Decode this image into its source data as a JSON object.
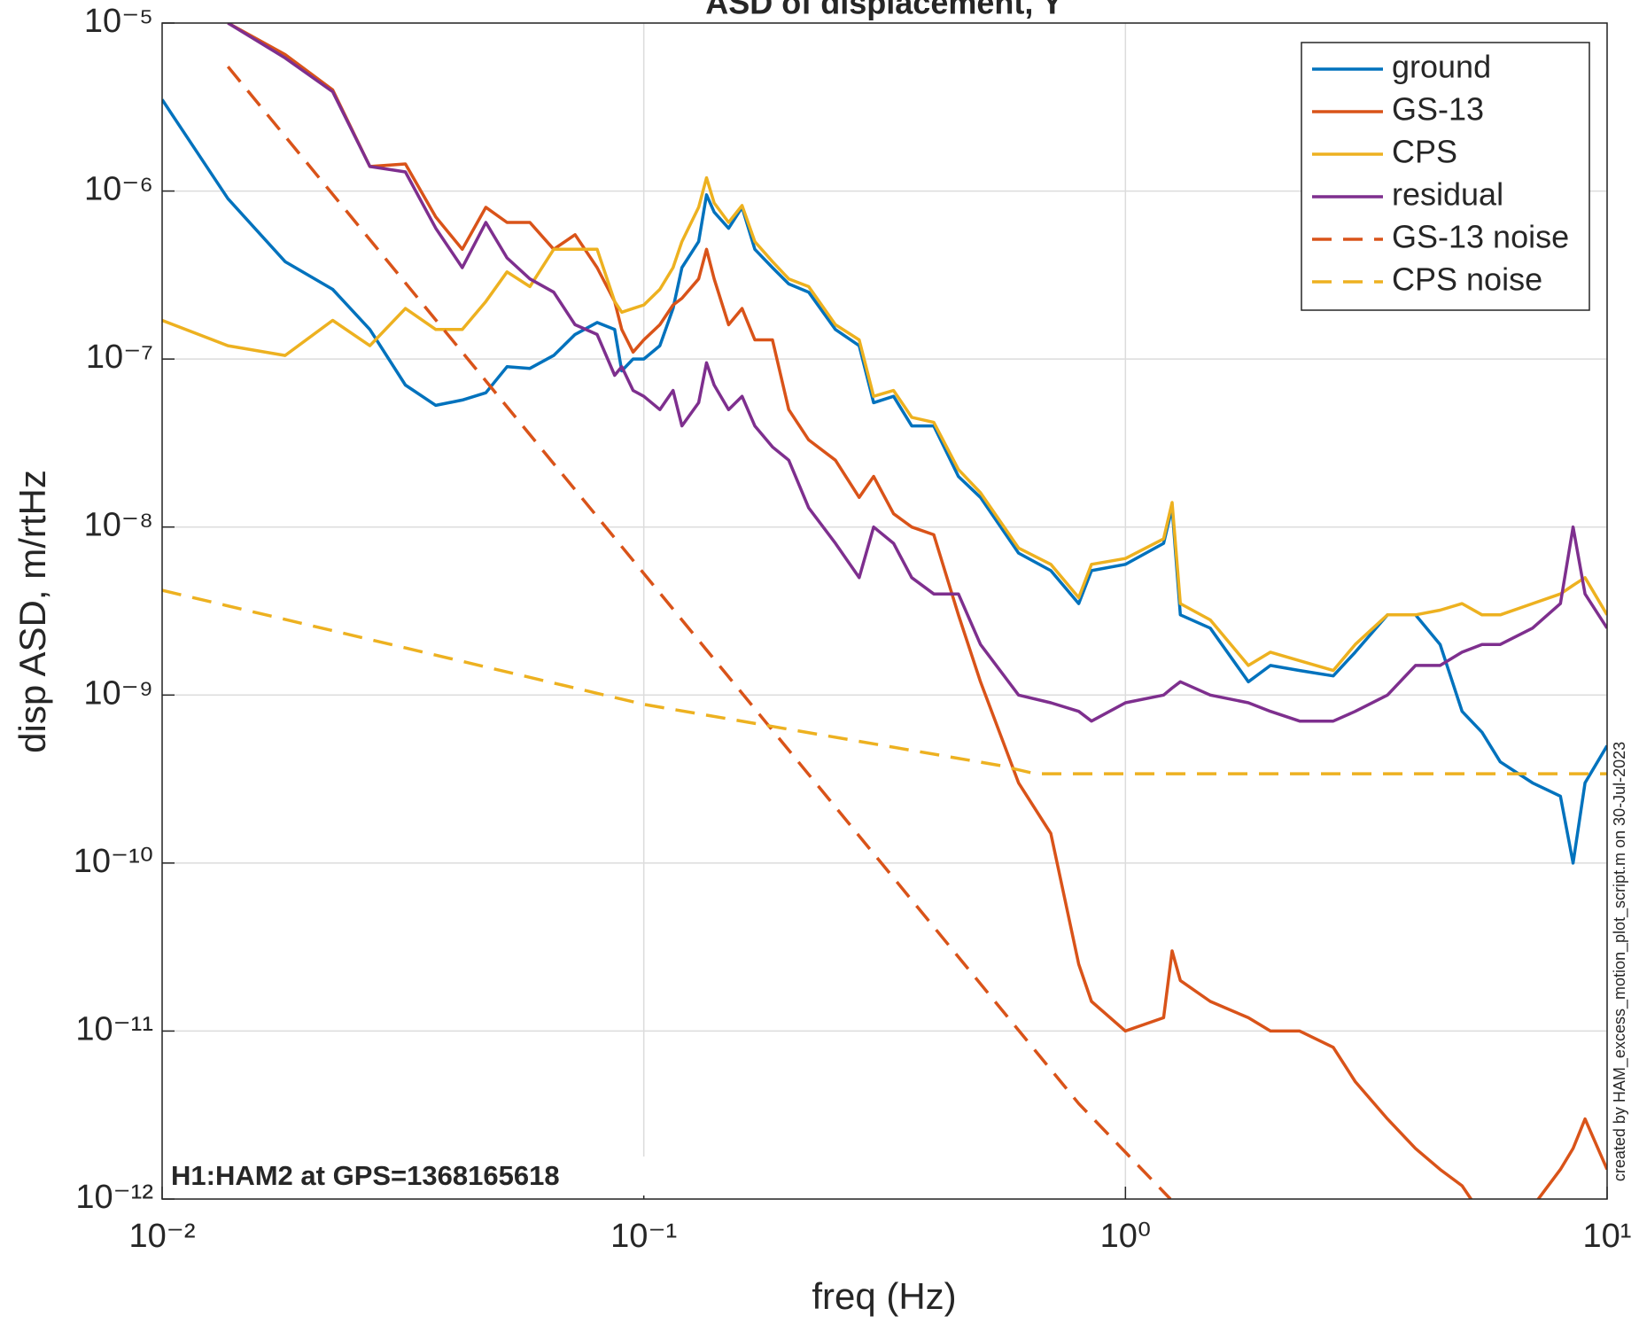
{
  "chart_data": {
    "type": "line",
    "title": "ASD of displacement, Y",
    "xlabel": "freq (Hz)",
    "ylabel": "disp ASD, m/rtHz",
    "annotation": "H1:HAM2 at GPS=1368165618",
    "side_note": "created by HAM_excess_motion_plot_script.m on 30-Jul-2023",
    "xscale": "log",
    "yscale": "log",
    "grid": true,
    "legend": "upper right",
    "xlim": [
      0.01,
      10
    ],
    "ylim": [
      1e-12,
      1e-05
    ],
    "xticks": [
      {
        "value": 0.01,
        "label": "10⁻²"
      },
      {
        "value": 0.1,
        "label": "10⁻¹"
      },
      {
        "value": 1,
        "label": "10⁰"
      },
      {
        "value": 10,
        "label": "10¹"
      }
    ],
    "yticks": [
      {
        "value": 1e-12,
        "label": "10⁻¹²"
      },
      {
        "value": 1e-11,
        "label": "10⁻¹¹"
      },
      {
        "value": 1e-10,
        "label": "10⁻¹⁰"
      },
      {
        "value": 1e-09,
        "label": "10⁻⁹"
      },
      {
        "value": 1e-08,
        "label": "10⁻⁸"
      },
      {
        "value": 1e-07,
        "label": "10⁻⁷"
      },
      {
        "value": 1e-06,
        "label": "10⁻⁶"
      },
      {
        "value": 1e-05,
        "label": "10⁻⁵"
      }
    ],
    "x": [
      0.01,
      0.0137,
      0.018,
      0.0226,
      0.027,
      0.032,
      0.037,
      0.042,
      0.047,
      0.052,
      0.058,
      0.065,
      0.072,
      0.08,
      0.087,
      0.09,
      0.095,
      0.1,
      0.108,
      0.115,
      0.12,
      0.13,
      0.135,
      0.14,
      0.15,
      0.16,
      0.17,
      0.185,
      0.2,
      0.22,
      0.25,
      0.28,
      0.3,
      0.33,
      0.36,
      0.4,
      0.45,
      0.5,
      0.6,
      0.7,
      0.8,
      0.85,
      1.0,
      1.2,
      1.25,
      1.3,
      1.5,
      1.8,
      2.0,
      2.3,
      2.7,
      3.0,
      3.5,
      4,
      4.5,
      5,
      5.5,
      6,
      7,
      8,
      8.5,
      9,
      10
    ],
    "series": [
      {
        "name": "ground",
        "color": "#0072bd",
        "dash": false,
        "values": [
          3.5e-06,
          9e-07,
          3.8e-07,
          2.6e-07,
          1.5e-07,
          7e-08,
          5.3e-08,
          5.7e-08,
          6.3e-08,
          9e-08,
          8.8e-08,
          1.05e-07,
          1.4e-07,
          1.65e-07,
          1.5e-07,
          8.5e-08,
          1e-07,
          1e-07,
          1.2e-07,
          2e-07,
          3.5e-07,
          5e-07,
          9.5e-07,
          7.5e-07,
          6e-07,
          8e-07,
          4.5e-07,
          3.5e-07,
          2.8e-07,
          2.5e-07,
          1.5e-07,
          1.2e-07,
          5.5e-08,
          6e-08,
          4e-08,
          4e-08,
          2e-08,
          1.5e-08,
          7e-09,
          5.5e-09,
          3.5e-09,
          5.5e-09,
          6e-09,
          8e-09,
          1.3e-08,
          3e-09,
          2.5e-09,
          1.2e-09,
          1.5e-09,
          1.4e-09,
          1.3e-09,
          1.8e-09,
          3e-09,
          3e-09,
          2e-09,
          8e-10,
          6e-10,
          4e-10,
          3e-10,
          2.5e-10,
          1e-10,
          3e-10,
          5e-10
        ]
      },
      {
        "name": "GS-13",
        "color": "#d95319",
        "dash": false,
        "values": [
          null,
          1e-05,
          6.5e-06,
          4e-06,
          1.4e-06,
          1.45e-06,
          7e-07,
          4.5e-07,
          8e-07,
          6.5e-07,
          6.5e-07,
          4.5e-07,
          5.5e-07,
          3.5e-07,
          2.2e-07,
          1.5e-07,
          1.1e-07,
          1.3e-07,
          1.6e-07,
          2.1e-07,
          2.3e-07,
          3e-07,
          4.5e-07,
          3e-07,
          1.6e-07,
          2e-07,
          1.3e-07,
          1.3e-07,
          5e-08,
          3.3e-08,
          2.5e-08,
          1.5e-08,
          2e-08,
          1.2e-08,
          1e-08,
          9e-09,
          3e-09,
          1.2e-09,
          3e-10,
          1.5e-10,
          2.5e-11,
          1.5e-11,
          1e-11,
          1.2e-11,
          3e-11,
          2e-11,
          1.5e-11,
          1.2e-11,
          1e-11,
          1e-11,
          8e-12,
          5e-12,
          3e-12,
          2e-12,
          1.5e-12,
          1.2e-12,
          8e-13,
          7e-13,
          9e-13,
          1.5e-12,
          2e-12,
          3e-12,
          1.5e-12
        ]
      },
      {
        "name": "CPS",
        "color": "#edb120",
        "dash": false,
        "values": [
          1.7e-07,
          1.2e-07,
          1.05e-07,
          1.7e-07,
          1.2e-07,
          2e-07,
          1.5e-07,
          1.5e-07,
          2.2e-07,
          3.3e-07,
          2.7e-07,
          4.5e-07,
          4.5e-07,
          4.5e-07,
          2.2e-07,
          1.9e-07,
          2e-07,
          2.1e-07,
          2.6e-07,
          3.5e-07,
          5e-07,
          8e-07,
          1.2e-06,
          8.5e-07,
          6.5e-07,
          8.2e-07,
          5e-07,
          3.8e-07,
          3e-07,
          2.7e-07,
          1.6e-07,
          1.3e-07,
          6e-08,
          6.5e-08,
          4.5e-08,
          4.2e-08,
          2.2e-08,
          1.6e-08,
          7.5e-09,
          6e-09,
          3.8e-09,
          6e-09,
          6.5e-09,
          8.5e-09,
          1.4e-08,
          3.5e-09,
          2.8e-09,
          1.5e-09,
          1.8e-09,
          1.6e-09,
          1.4e-09,
          2e-09,
          3e-09,
          3e-09,
          3.2e-09,
          3.5e-09,
          3e-09,
          3e-09,
          3.5e-09,
          4e-09,
          4.5e-09,
          5e-09,
          3e-09
        ]
      },
      {
        "name": "residual",
        "color": "#7e2f8e",
        "dash": false,
        "values": [
          null,
          1e-05,
          6.2e-06,
          3.9e-06,
          1.4e-06,
          1.3e-06,
          6e-07,
          3.5e-07,
          6.5e-07,
          4e-07,
          3e-07,
          2.5e-07,
          1.6e-07,
          1.4e-07,
          8e-08,
          9e-08,
          6.5e-08,
          6e-08,
          5e-08,
          6.5e-08,
          4e-08,
          5.5e-08,
          9.5e-08,
          7e-08,
          5e-08,
          6e-08,
          4e-08,
          3e-08,
          2.5e-08,
          1.3e-08,
          8e-09,
          5e-09,
          1e-08,
          8e-09,
          5e-09,
          4e-09,
          4e-09,
          2e-09,
          1e-09,
          9e-10,
          8e-10,
          7e-10,
          9e-10,
          1e-09,
          1.1e-09,
          1.2e-09,
          1e-09,
          9e-10,
          8e-10,
          7e-10,
          7e-10,
          8e-10,
          1e-09,
          1.5e-09,
          1.5e-09,
          1.8e-09,
          2e-09,
          2e-09,
          2.5e-09,
          3.5e-09,
          1e-08,
          4e-09,
          2.5e-09
        ]
      },
      {
        "name": "GS-13 noise",
        "color": "#d95319",
        "dash": true,
        "x": [
          0.0137,
          0.8,
          1.24
        ],
        "values": [
          5.5e-06,
          3.7e-12,
          1e-12
        ]
      },
      {
        "name": "CPS noise",
        "color": "#edb120",
        "dash": true,
        "x": [
          0.01,
          0.1,
          0.55,
          0.65,
          10
        ],
        "values": [
          4.2e-09,
          8.8e-10,
          3.8e-10,
          3.4e-10,
          3.4e-10
        ]
      }
    ]
  }
}
